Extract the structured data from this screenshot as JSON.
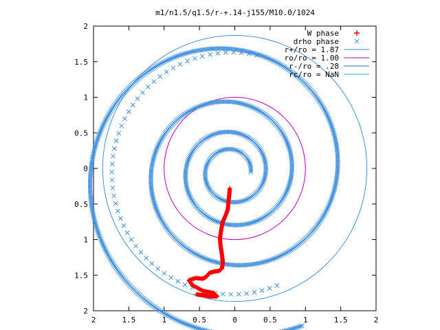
{
  "colors": {
    "w_phase": "#ff0000",
    "drho_phase": "#3d8fe0",
    "r_plus": "#3d8fe0",
    "r_o": "#b000b0",
    "r_minus": "#1a6fe0",
    "r_c": "#20c0c0",
    "frame": "#000000"
  },
  "chart_data": {
    "type": "scatter",
    "title": "m1/n1.5/q1.5/r-+.14-j155/M10.0/1024",
    "xlabel": "",
    "ylabel": "",
    "xlim": [
      -2,
      2
    ],
    "ylim": [
      -2,
      2
    ],
    "x_tick_values": [
      -2,
      -1.5,
      -1,
      -0.5,
      0,
      0.5,
      1,
      1.5,
      2
    ],
    "x_tick_labels": [
      "2",
      "1.5",
      "1",
      "0.5",
      "0",
      "0.5",
      "1",
      "1.5",
      "2"
    ],
    "y_tick_values": [
      2,
      1.5,
      1,
      0.5,
      0,
      -0.5,
      -1,
      -1.5,
      -2
    ],
    "y_tick_labels": [
      "2",
      "1.5",
      "1",
      "0.5",
      "0",
      "0.5",
      "1",
      "1.5",
      "2"
    ],
    "grid": false,
    "legend_position": "top-right",
    "legend": [
      {
        "label": "W phase",
        "marker": "plus",
        "color_key": "w_phase"
      },
      {
        "label": "drho phase",
        "marker": "cross",
        "color_key": "drho_phase"
      },
      {
        "label": "r+/ro = 1.87",
        "marker": "line",
        "color_key": "r_plus"
      },
      {
        "label": "ro/ro = 1.00",
        "marker": "line",
        "color_key": "r_o"
      },
      {
        "label": "r-/ro = .28",
        "marker": "line",
        "color_key": "r_minus"
      },
      {
        "label": "rc/ro = NaN",
        "marker": "line",
        "color_key": "r_c"
      }
    ],
    "circles": [
      {
        "name": "r+/ro = 1.87",
        "radius": 1.87,
        "color_key": "r_plus"
      },
      {
        "name": "ro/ro = 1.00",
        "radius": 1.0,
        "color_key": "r_o"
      }
    ],
    "w_phase": {
      "x": [
        -0.07,
        -0.08,
        -0.09,
        -0.1,
        -0.13,
        -0.17,
        -0.19,
        -0.21,
        -0.2,
        -0.18,
        -0.17,
        -0.18,
        -0.22,
        -0.3,
        -0.36,
        -0.4,
        -0.45,
        -0.55,
        -0.65,
        -0.6,
        -0.45,
        -0.3,
        -0.25,
        -0.35,
        -0.45,
        -0.55
      ],
      "y": [
        -0.28,
        -0.38,
        -0.48,
        -0.58,
        -0.66,
        -0.75,
        -0.85,
        -0.98,
        -1.1,
        -1.22,
        -1.32,
        -1.4,
        -1.44,
        -1.45,
        -1.47,
        -1.52,
        -1.55,
        -1.54,
        -1.57,
        -1.64,
        -1.72,
        -1.75,
        -1.8,
        -1.8,
        -1.78,
        -1.77
      ]
    },
    "drho_phase": {
      "spiral": {
        "a": 0.278,
        "b": 0.0895,
        "theta_start": 0,
        "theta_end": 24.0,
        "cx": -0.05,
        "cy": -0.05
      },
      "outer_ring": {
        "radius": 1.7,
        "cx": -0.04,
        "cy": -0.07,
        "angle_start_deg": 78,
        "angle_end_deg": 292,
        "count": 58
      }
    }
  }
}
